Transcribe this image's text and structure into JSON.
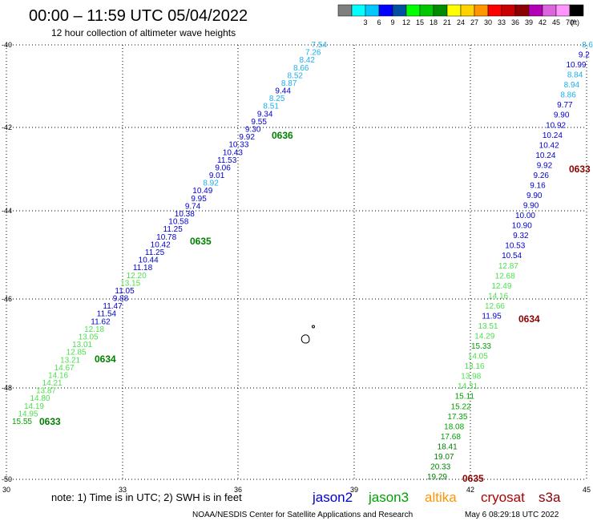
{
  "header": {
    "title": "00:00 – 11:59 UTC 05/04/2022",
    "subtitle": "12 hour collection of altimeter wave heights"
  },
  "legend": {
    "unit": "(ft)",
    "bins": [
      {
        "label": "",
        "color": "#7f7f7f"
      },
      {
        "label": "3",
        "color": "#00ffff"
      },
      {
        "label": "6",
        "color": "#00c8ff"
      },
      {
        "label": "9",
        "color": "#0000ff"
      },
      {
        "label": "12",
        "color": "#0050a0"
      },
      {
        "label": "15",
        "color": "#00ff00"
      },
      {
        "label": "18",
        "color": "#00c800"
      },
      {
        "label": "21",
        "color": "#008c00"
      },
      {
        "label": "24",
        "color": "#ffff00"
      },
      {
        "label": "27",
        "color": "#ffd200"
      },
      {
        "label": "30",
        "color": "#ff9600"
      },
      {
        "label": "33",
        "color": "#ff0000"
      },
      {
        "label": "36",
        "color": "#c80000"
      },
      {
        "label": "39",
        "color": "#8c0000"
      },
      {
        "label": "42",
        "color": "#b400b4"
      },
      {
        "label": "45",
        "color": "#dc64dc"
      },
      {
        "label": "70",
        "color": "#ff96ff"
      },
      {
        "label": "",
        "color": "#000000"
      }
    ]
  },
  "axes": {
    "lon_ticks": [
      "30",
      "33",
      "36",
      "39",
      "42",
      "45"
    ],
    "lat_ticks": [
      "-40",
      "-42",
      "-44",
      "-46",
      "-48",
      "-50"
    ]
  },
  "track_colors": {
    "light_blue": "#1ab0f0",
    "dark_blue": "#0000cd",
    "light_green": "#4de04d",
    "green": "#00a000",
    "dark_green": "#008000",
    "dark_red": "#8b0000"
  },
  "tracks": {
    "left": {
      "points": [
        {
          "v": "7.54",
          "c": "light_blue"
        },
        {
          "v": "7.26",
          "c": "light_blue"
        },
        {
          "v": "8.42",
          "c": "light_blue"
        },
        {
          "v": "8.66",
          "c": "light_blue"
        },
        {
          "v": "8.52",
          "c": "light_blue"
        },
        {
          "v": "8.87",
          "c": "light_blue"
        },
        {
          "v": "9.44",
          "c": "dark_blue"
        },
        {
          "v": "8.25",
          "c": "light_blue"
        },
        {
          "v": "8.51",
          "c": "light_blue"
        },
        {
          "v": "9.34",
          "c": "dark_blue"
        },
        {
          "v": "9.55",
          "c": "dark_blue"
        },
        {
          "v": "9.30",
          "c": "dark_blue"
        },
        {
          "v": "9.92",
          "c": "dark_blue"
        },
        {
          "v": "10.33",
          "c": "dark_blue"
        },
        {
          "v": "10.43",
          "c": "dark_blue"
        },
        {
          "v": "11.53",
          "c": "dark_blue"
        },
        {
          "v": "9.06",
          "c": "dark_blue"
        },
        {
          "v": "9.01",
          "c": "dark_blue"
        },
        {
          "v": "8.92",
          "c": "light_blue"
        },
        {
          "v": "10.49",
          "c": "dark_blue"
        },
        {
          "v": "9.95",
          "c": "dark_blue"
        },
        {
          "v": "9.74",
          "c": "dark_blue"
        },
        {
          "v": "10.38",
          "c": "dark_blue"
        },
        {
          "v": "10.58",
          "c": "dark_blue"
        },
        {
          "v": "11.25",
          "c": "dark_blue"
        },
        {
          "v": "10.78",
          "c": "dark_blue"
        },
        {
          "v": "10.42",
          "c": "dark_blue"
        },
        {
          "v": "11.25",
          "c": "dark_blue"
        },
        {
          "v": "10.44",
          "c": "dark_blue"
        },
        {
          "v": "11.18",
          "c": "dark_blue"
        },
        {
          "v": "12.20",
          "c": "light_green"
        },
        {
          "v": "13.15",
          "c": "light_green"
        },
        {
          "v": "11.05",
          "c": "dark_blue"
        },
        {
          "v": "9.88",
          "c": "dark_blue"
        },
        {
          "v": "11.47",
          "c": "dark_blue"
        },
        {
          "v": "11.54",
          "c": "dark_blue"
        },
        {
          "v": "11.62",
          "c": "dark_blue"
        },
        {
          "v": "12.18",
          "c": "light_green"
        },
        {
          "v": "13.05",
          "c": "light_green"
        },
        {
          "v": "13.01",
          "c": "light_green"
        },
        {
          "v": "12.85",
          "c": "light_green"
        },
        {
          "v": "13.21",
          "c": "light_green"
        },
        {
          "v": "14.67",
          "c": "light_green"
        },
        {
          "v": "14.16",
          "c": "light_green"
        },
        {
          "v": "14.21",
          "c": "light_green"
        },
        {
          "v": "13.87",
          "c": "light_green"
        },
        {
          "v": "14.80",
          "c": "light_green"
        },
        {
          "v": "14.19",
          "c": "light_green"
        },
        {
          "v": "14.95",
          "c": "light_green"
        },
        {
          "v": "15.55",
          "c": "green"
        }
      ],
      "times": [
        {
          "t": "0636",
          "c": "dark_green"
        },
        {
          "t": "0635",
          "c": "dark_green"
        },
        {
          "t": "0634",
          "c": "dark_green"
        },
        {
          "t": "0633",
          "c": "dark_green"
        }
      ]
    },
    "right": {
      "points": [
        {
          "v": "8.6",
          "c": "light_blue"
        },
        {
          "v": "9.2",
          "c": "dark_blue"
        },
        {
          "v": "10.99",
          "c": "dark_blue"
        },
        {
          "v": "8.84",
          "c": "light_blue"
        },
        {
          "v": "8.94",
          "c": "light_blue"
        },
        {
          "v": "8.86",
          "c": "light_blue"
        },
        {
          "v": "9.77",
          "c": "dark_blue"
        },
        {
          "v": "9.90",
          "c": "dark_blue"
        },
        {
          "v": "10.92",
          "c": "dark_blue"
        },
        {
          "v": "10.24",
          "c": "dark_blue"
        },
        {
          "v": "10.42",
          "c": "dark_blue"
        },
        {
          "v": "10.24",
          "c": "dark_blue"
        },
        {
          "v": "9.92",
          "c": "dark_blue"
        },
        {
          "v": "9.26",
          "c": "dark_blue"
        },
        {
          "v": "9.16",
          "c": "dark_blue"
        },
        {
          "v": "9.90",
          "c": "dark_blue"
        },
        {
          "v": "9.90",
          "c": "dark_blue"
        },
        {
          "v": "10.00",
          "c": "dark_blue"
        },
        {
          "v": "10.90",
          "c": "dark_blue"
        },
        {
          "v": "9.32",
          "c": "dark_blue"
        },
        {
          "v": "10.53",
          "c": "dark_blue"
        },
        {
          "v": "10.54",
          "c": "dark_blue"
        },
        {
          "v": "12.87",
          "c": "light_green"
        },
        {
          "v": "12.68",
          "c": "light_green"
        },
        {
          "v": "12.49",
          "c": "light_green"
        },
        {
          "v": "14.16",
          "c": "light_green"
        },
        {
          "v": "12.66",
          "c": "light_green"
        },
        {
          "v": "11.95",
          "c": "dark_blue"
        },
        {
          "v": "13.51",
          "c": "light_green"
        },
        {
          "v": "14.29",
          "c": "light_green"
        },
        {
          "v": "15.33",
          "c": "green"
        },
        {
          "v": "14.05",
          "c": "light_green"
        },
        {
          "v": "13.16",
          "c": "light_green"
        },
        {
          "v": "13.98",
          "c": "light_green"
        },
        {
          "v": "14.31",
          "c": "light_green"
        },
        {
          "v": "15.11",
          "c": "green"
        },
        {
          "v": "15.22",
          "c": "green"
        },
        {
          "v": "17.35",
          "c": "green"
        },
        {
          "v": "18.08",
          "c": "green"
        },
        {
          "v": "17.68",
          "c": "green"
        },
        {
          "v": "18.41",
          "c": "dark_green"
        },
        {
          "v": "19.07",
          "c": "dark_green"
        },
        {
          "v": "20.33",
          "c": "dark_green"
        },
        {
          "v": "19.29",
          "c": "dark_green"
        }
      ],
      "times": [
        {
          "t": "0633",
          "c": "dark_red"
        },
        {
          "t": "0634",
          "c": "dark_red"
        },
        {
          "t": "0635",
          "c": "dark_red"
        }
      ]
    }
  },
  "footer": {
    "note": "note: 1) Time is in UTC; 2) SWH is in feet",
    "satellites": [
      {
        "name": "jason2",
        "color": "#0000cd"
      },
      {
        "name": "jason3",
        "color": "#00a000"
      },
      {
        "name": "altika",
        "color": "#ff9600"
      },
      {
        "name": "cryosat",
        "color": "#b00000"
      },
      {
        "name": "s3a",
        "color": "#8b0000"
      }
    ],
    "credit": "NOAA/NESDIS Center for Satellite Applications and Research",
    "timestamp": "May  6 08:29:18 UTC 2022"
  }
}
